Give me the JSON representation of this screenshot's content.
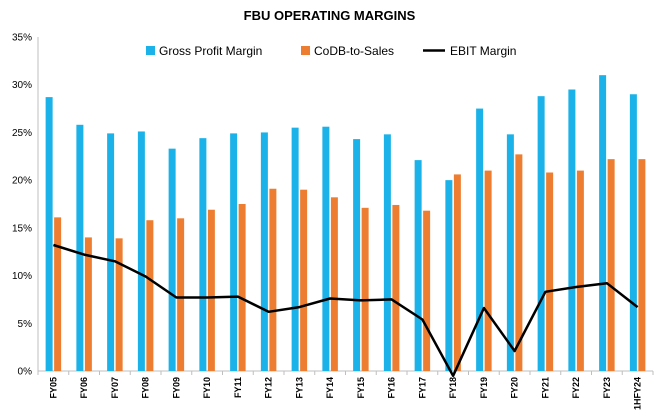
{
  "chart_data": {
    "type": "bar",
    "title": "FBU OPERATING MARGINS",
    "categories": [
      "FY05",
      "FY06",
      "FY07",
      "FY08",
      "FY09",
      "FY10",
      "FY11",
      "FY12",
      "FY13",
      "FY14",
      "FY15",
      "FY16",
      "FY17",
      "FY18",
      "FY19",
      "FY20",
      "FY21",
      "FY22",
      "FY23",
      "1HFY24"
    ],
    "series": [
      {
        "name": "Gross Profit Margin",
        "type": "bar",
        "color": "#1ab2e8",
        "values": [
          28.7,
          25.8,
          24.9,
          25.1,
          23.3,
          24.4,
          24.9,
          25.0,
          25.5,
          25.6,
          24.3,
          24.8,
          22.1,
          20.0,
          27.5,
          24.8,
          28.8,
          29.5,
          31.0,
          29.0
        ]
      },
      {
        "name": "CoDB-to-Sales",
        "type": "bar",
        "color": "#ed7d31",
        "values": [
          16.1,
          14.0,
          13.9,
          15.8,
          16.0,
          16.9,
          17.5,
          19.1,
          19.0,
          18.2,
          17.1,
          17.4,
          16.8,
          20.6,
          21.0,
          22.7,
          20.8,
          21.0,
          22.2,
          22.2
        ]
      },
      {
        "name": "EBIT Margin",
        "type": "line",
        "color": "#000000",
        "values": [
          13.2,
          12.2,
          11.5,
          9.9,
          7.7,
          7.7,
          7.8,
          6.2,
          6.7,
          7.6,
          7.4,
          7.5,
          5.4,
          -0.5,
          6.6,
          2.1,
          8.3,
          8.8,
          9.2,
          6.7
        ]
      }
    ],
    "y_ticks": [
      "0%",
      "5%",
      "10%",
      "15%",
      "20%",
      "25%",
      "30%",
      "35%"
    ],
    "ylim": [
      0,
      35
    ],
    "grid": false,
    "legend_position": "top"
  }
}
